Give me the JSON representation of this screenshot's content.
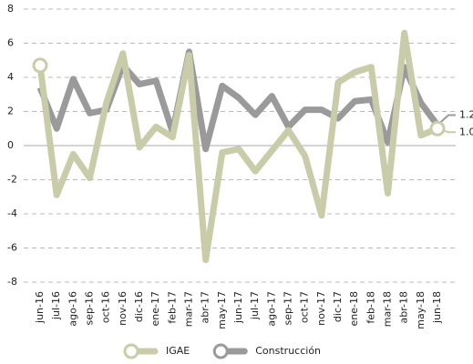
{
  "chart_data": {
    "type": "line",
    "categories": [
      "jun-16",
      "jul-16",
      "ago-16",
      "sep-16",
      "oct-16",
      "nov-16",
      "dic-16",
      "ene-17",
      "feb-17",
      "mar-17",
      "abr-17",
      "may-17",
      "jun-17",
      "jul-17",
      "ago-17",
      "sep-17",
      "oct-17",
      "nov-17",
      "dic-17",
      "ene-18",
      "feb-18",
      "mar-18",
      "abr-18",
      "may-18",
      "jun-18"
    ],
    "series": [
      {
        "name": "IGAE",
        "color": "#c9cca9",
        "end_label": "1.0",
        "values": [
          4.7,
          -2.9,
          -0.5,
          -1.9,
          2.5,
          5.4,
          -0.1,
          1.1,
          0.5,
          5.3,
          -6.7,
          -0.4,
          -0.2,
          -1.5,
          -0.3,
          0.9,
          -0.6,
          -4.1,
          3.7,
          4.3,
          4.6,
          -2.8,
          6.6,
          0.6,
          1.0
        ]
      },
      {
        "name": "Construcción",
        "color": "#9a9a9a",
        "end_label": "1.2",
        "values": [
          3.4,
          1.0,
          3.9,
          1.9,
          2.1,
          4.7,
          3.6,
          3.8,
          0.8,
          5.5,
          -0.2,
          3.5,
          2.8,
          1.8,
          2.9,
          1.1,
          2.1,
          2.1,
          1.6,
          2.6,
          2.7,
          0.2,
          4.6,
          2.5,
          1.2
        ]
      }
    ],
    "ylim": [
      -8,
      8
    ],
    "yticks": [
      -8,
      -6,
      -4,
      -2,
      0,
      2,
      4,
      6,
      8
    ],
    "grid": true,
    "legend": "bottom"
  }
}
